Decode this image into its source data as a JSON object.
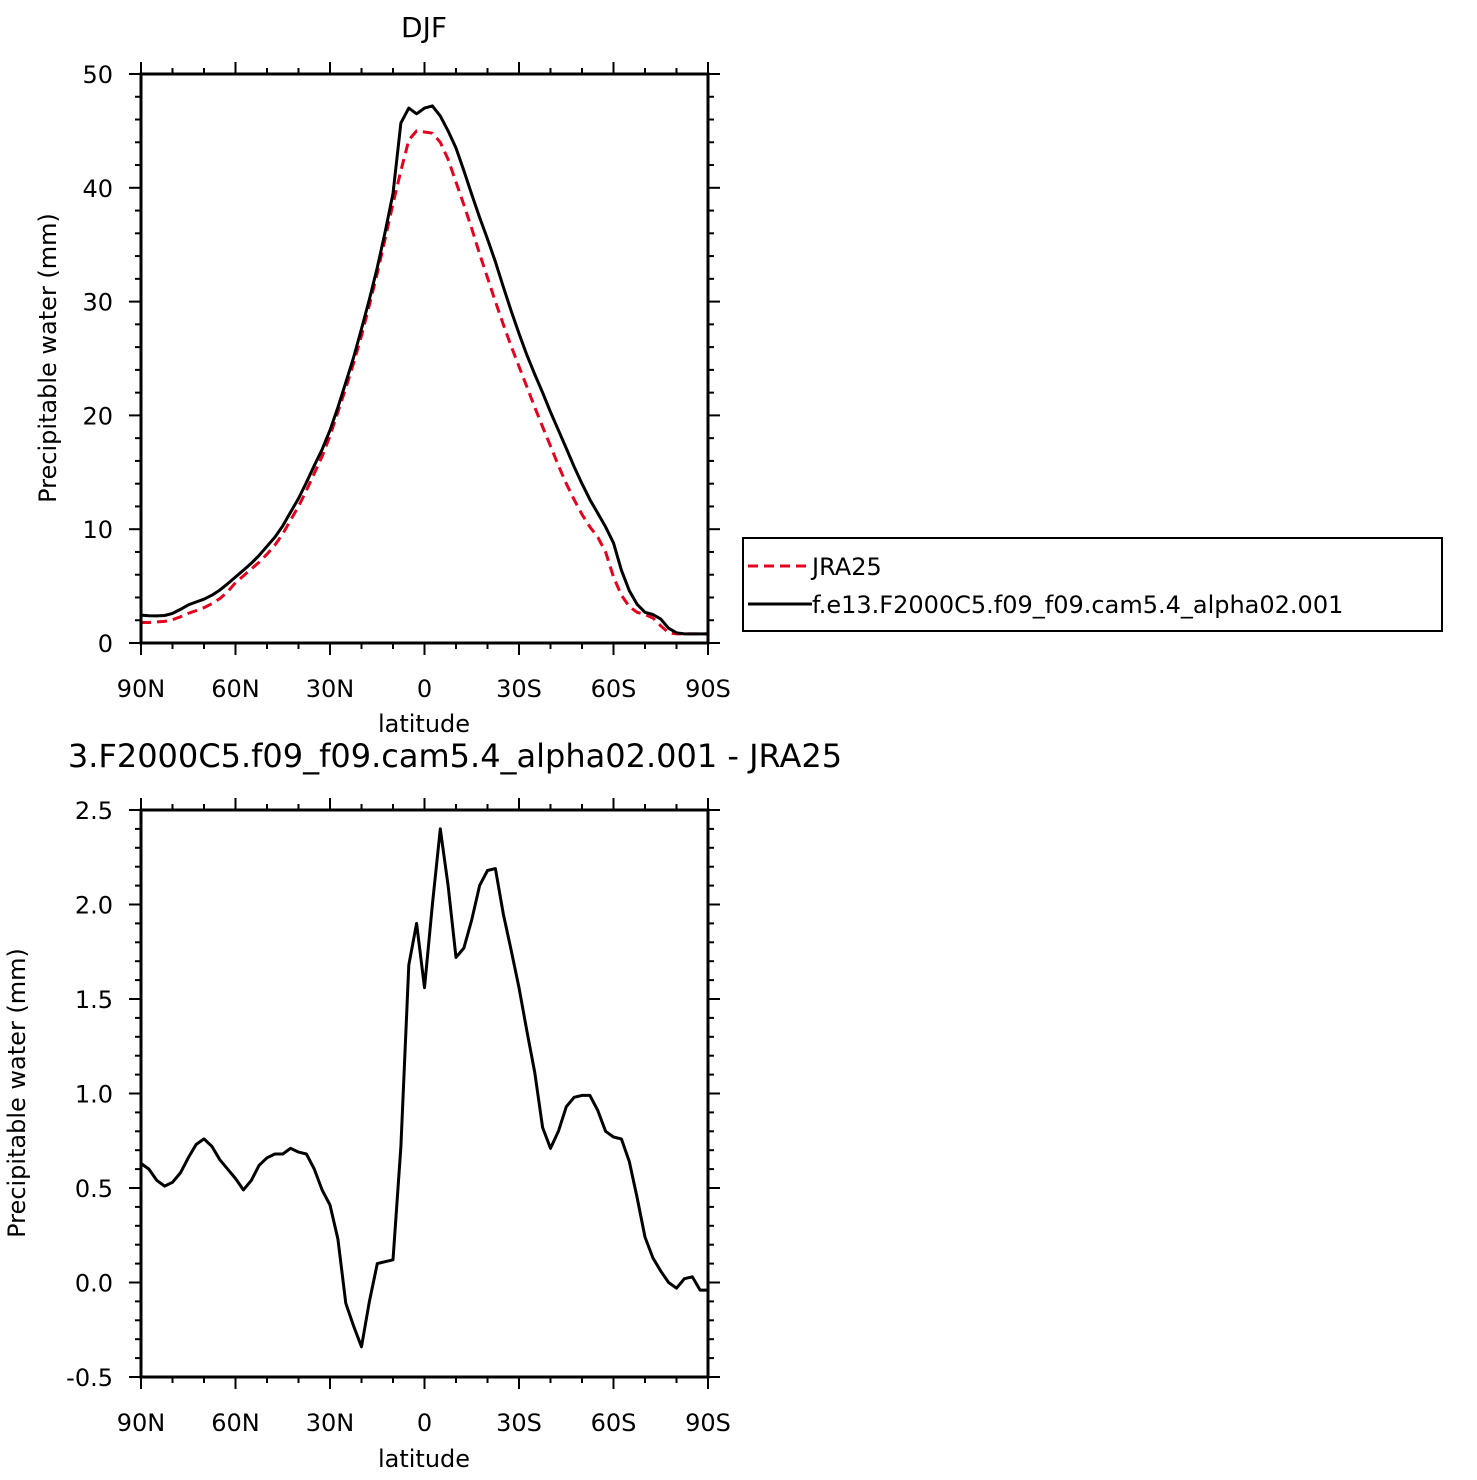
{
  "chart_data": [
    {
      "type": "line",
      "title": "DJF",
      "xlabel": "latitude",
      "ylabel": "Precipitable water (mm)",
      "xlim": [
        90,
        -90
      ],
      "ylim": [
        0,
        50
      ],
      "x_tick_values": [
        90,
        60,
        30,
        0,
        -30,
        -60,
        -90
      ],
      "x_tick_labels": [
        "90N",
        "60N",
        "30N",
        "0",
        "30S",
        "60S",
        "90S"
      ],
      "y_tick_values": [
        0,
        10,
        20,
        30,
        40,
        50
      ],
      "y_tick_labels": [
        "0",
        "10",
        "20",
        "30",
        "40",
        "50"
      ],
      "grid": false,
      "legend_position": "right",
      "x": [
        90,
        87.5,
        85,
        82.5,
        80,
        77.5,
        75,
        72.5,
        70,
        67.5,
        65,
        62.5,
        60,
        57.5,
        55,
        52.5,
        50,
        47.5,
        45,
        42.5,
        40,
        37.5,
        35,
        32.5,
        30,
        27.5,
        25,
        22.5,
        20,
        17.5,
        15,
        12.5,
        10,
        7.5,
        5,
        2.5,
        0,
        -2.5,
        -5,
        -7.5,
        -10,
        -12.5,
        -15,
        -17.5,
        -20,
        -22.5,
        -25,
        -27.5,
        -30,
        -32.5,
        -35,
        -37.5,
        -40,
        -42.5,
        -45,
        -47.5,
        -50,
        -52.5,
        -55,
        -57.5,
        -60,
        -62.5,
        -65,
        -67.5,
        -70,
        -72.5,
        -75,
        -77.5,
        -80,
        -82.5,
        -85,
        -87.5,
        -90
      ],
      "series": [
        {
          "name": "JRA25",
          "color": "#e8001c",
          "dash": "dashed",
          "values": [
            1.8,
            1.8,
            1.85,
            1.9,
            2.05,
            2.3,
            2.6,
            2.85,
            3.1,
            3.45,
            3.9,
            4.5,
            5.3,
            5.9,
            6.5,
            7.1,
            7.8,
            8.6,
            9.6,
            10.8,
            12.0,
            13.4,
            14.9,
            16.4,
            18.2,
            20.3,
            22.4,
            24.6,
            27.0,
            29.7,
            32.5,
            35.5,
            38.6,
            41.5,
            44.2,
            45.0,
            44.9,
            44.8,
            44.0,
            42.5,
            40.5,
            38.5,
            36.4,
            34.2,
            32.1,
            30.0,
            28.0,
            26.1,
            24.3,
            22.5,
            20.7,
            19.0,
            17.3,
            15.6,
            14.0,
            12.6,
            11.3,
            10.2,
            9.3,
            8.0,
            5.8,
            4.2,
            3.2,
            2.7,
            2.5,
            2.2,
            1.5,
            0.9,
            0.8,
            0.8,
            0.8,
            0.8,
            0.8
          ]
        },
        {
          "name": "f.e13.F2000C5.f09_f09.cam5.4_alpha02.001",
          "color": "#000000",
          "dash": "solid",
          "values": [
            2.45,
            2.4,
            2.38,
            2.42,
            2.6,
            2.95,
            3.35,
            3.6,
            3.85,
            4.2,
            4.65,
            5.2,
            5.8,
            6.4,
            7.0,
            7.7,
            8.5,
            9.3,
            10.3,
            11.5,
            12.7,
            14.1,
            15.6,
            17.0,
            18.7,
            20.7,
            22.9,
            25.1,
            27.6,
            30.2,
            33.0,
            36.1,
            39.5,
            45.7,
            47.0,
            46.5,
            47.0,
            47.2,
            46.3,
            45.0,
            43.5,
            41.5,
            39.4,
            37.4,
            35.5,
            33.5,
            31.3,
            29.2,
            27.2,
            25.3,
            23.6,
            22.0,
            20.3,
            18.7,
            17.1,
            15.5,
            14.0,
            12.6,
            11.4,
            10.2,
            8.8,
            6.4,
            4.6,
            3.4,
            2.7,
            2.5,
            2.1,
            1.3,
            0.9,
            0.8,
            0.8,
            0.8,
            0.8
          ]
        }
      ]
    },
    {
      "type": "line",
      "title": "3.F2000C5.f09_f09.cam5.4_alpha02.001 - JRA25",
      "xlabel": "latitude",
      "ylabel": "Precipitable water (mm)",
      "xlim": [
        90,
        -90
      ],
      "ylim": [
        -0.5,
        2.5
      ],
      "x_tick_values": [
        90,
        60,
        30,
        0,
        -30,
        -60,
        -90
      ],
      "x_tick_labels": [
        "90N",
        "60N",
        "30N",
        "0",
        "30S",
        "60S",
        "90S"
      ],
      "y_tick_values": [
        -0.5,
        0,
        0.5,
        1,
        1.5,
        2,
        2.5
      ],
      "y_tick_labels": [
        "-0.5",
        "0.0",
        "0.5",
        "1.0",
        "1.5",
        "2.0",
        "2.5"
      ],
      "grid": false,
      "x": [
        90,
        87.5,
        85,
        82.5,
        80,
        77.5,
        75,
        72.5,
        70,
        67.5,
        65,
        62.5,
        60,
        57.5,
        55,
        52.5,
        50,
        47.5,
        45,
        42.5,
        40,
        37.5,
        35,
        32.5,
        30,
        27.5,
        25,
        22.5,
        20,
        17.5,
        15,
        12.5,
        10,
        7.5,
        5,
        2.5,
        0,
        -2.5,
        -5,
        -7.5,
        -10,
        -12.5,
        -15,
        -17.5,
        -20,
        -22.5,
        -25,
        -27.5,
        -30,
        -32.5,
        -35,
        -37.5,
        -40,
        -42.5,
        -45,
        -47.5,
        -50,
        -52.5,
        -55,
        -57.5,
        -60,
        -62.5,
        -65,
        -67.5,
        -70,
        -72.5,
        -75,
        -77.5,
        -80,
        -82.5,
        -85,
        -87.5,
        -90
      ],
      "series": [
        {
          "color": "#000000",
          "values": [
            0.63,
            0.6,
            0.54,
            0.51,
            0.53,
            0.58,
            0.66,
            0.73,
            0.76,
            0.72,
            0.65,
            0.6,
            0.55,
            0.49,
            0.54,
            0.62,
            0.66,
            0.68,
            0.68,
            0.71,
            0.69,
            0.68,
            0.6,
            0.49,
            0.41,
            0.23,
            -0.11,
            -0.23,
            -0.34,
            -0.1,
            0.1,
            0.11,
            0.12,
            0.72,
            1.68,
            1.9,
            1.56,
            2.0,
            2.4,
            2.1,
            1.72,
            1.77,
            1.92,
            2.1,
            2.18,
            2.19,
            1.95,
            1.76,
            1.56,
            1.33,
            1.11,
            0.82,
            0.71,
            0.8,
            0.93,
            0.98,
            0.99,
            0.99,
            0.91,
            0.8,
            0.77,
            0.76,
            0.64,
            0.45,
            0.24,
            0.13,
            0.06,
            0.0,
            -0.03,
            0.02,
            0.03,
            -0.04,
            -0.04
          ]
        }
      ]
    }
  ]
}
